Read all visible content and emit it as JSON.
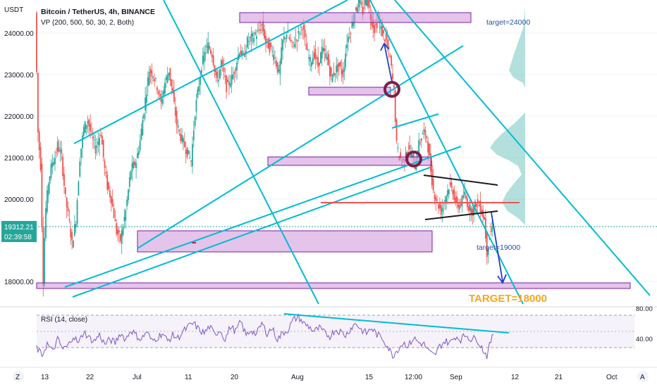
{
  "header": {
    "title": "Bitcoin / TetherUS, 4h, BINANCE",
    "indicator": "VP (200, 500, 50, 30, 2, Both)",
    "currency": "USDT"
  },
  "price_badge": {
    "price": "19312.21",
    "countdown": "02:39:58"
  },
  "annotations": {
    "target_24000": "target=24000",
    "target_19000": "target=19000",
    "target_18000": "TARGET=18000"
  },
  "rsi": {
    "label": "RSI (14, close)",
    "levels": [
      "80.00",
      "40.00"
    ]
  },
  "colors": {
    "trendline": "#00bcd4",
    "zone_fill": "#ce93d8",
    "zone_border": "#7b1fa2",
    "poc_line": "#ef5350",
    "arrow": "#1e40c8",
    "circle": "#7b1f4a",
    "volume_profile": "#26a69a",
    "target_big": "#f5a623",
    "up_candle": "#26a69a",
    "down_candle": "#ef5350",
    "rsi_line": "#7e57c2",
    "price_badge": "#26a69a"
  },
  "chart_data": {
    "type": "candlestick",
    "symbol": "BTCUSDT",
    "timeframe": "4h",
    "y_ticks": [
      "24000.00",
      "23000.00",
      "22000.00",
      "21000.00",
      "20000.00",
      "18000.00"
    ],
    "x_ticks": [
      "13",
      "22",
      "Jul",
      "11",
      "20",
      "Aug",
      "15",
      "12:00",
      "Sep",
      "12",
      "21",
      "Oct"
    ],
    "last_price": 19312.21,
    "targets": [
      24000,
      19000,
      18000
    ],
    "price_path": [
      [
        0,
        24500
      ],
      [
        4,
        21600
      ],
      [
        8,
        20800
      ],
      [
        12,
        18000
      ],
      [
        15,
        19600
      ],
      [
        20,
        20400
      ],
      [
        26,
        20900
      ],
      [
        30,
        21000
      ],
      [
        34,
        21300
      ],
      [
        40,
        21000
      ],
      [
        46,
        20000
      ],
      [
        52,
        19400
      ],
      [
        56,
        18900
      ],
      [
        62,
        19500
      ],
      [
        68,
        21000
      ],
      [
        74,
        21700
      ],
      [
        80,
        21900
      ],
      [
        86,
        21500
      ],
      [
        92,
        21200
      ],
      [
        100,
        21600
      ],
      [
        106,
        20700
      ],
      [
        110,
        20300
      ],
      [
        116,
        20000
      ],
      [
        124,
        19200
      ],
      [
        130,
        19000
      ],
      [
        138,
        19700
      ],
      [
        146,
        20700
      ],
      [
        154,
        20900
      ],
      [
        160,
        21400
      ],
      [
        168,
        22400
      ],
      [
        174,
        23100
      ],
      [
        180,
        23000
      ],
      [
        186,
        22700
      ],
      [
        192,
        22300
      ],
      [
        198,
        22800
      ],
      [
        204,
        23100
      ],
      [
        210,
        22500
      ],
      [
        216,
        21800
      ],
      [
        222,
        21500
      ],
      [
        230,
        21200
      ],
      [
        238,
        20900
      ],
      [
        244,
        22100
      ],
      [
        252,
        23000
      ],
      [
        258,
        23500
      ],
      [
        264,
        23700
      ],
      [
        270,
        23500
      ],
      [
        278,
        22800
      ],
      [
        284,
        23300
      ],
      [
        292,
        22700
      ],
      [
        300,
        22900
      ],
      [
        306,
        23200
      ],
      [
        312,
        23600
      ],
      [
        318,
        23400
      ],
      [
        324,
        23800
      ],
      [
        332,
        23900
      ],
      [
        340,
        24000
      ],
      [
        346,
        24200
      ],
      [
        352,
        23800
      ],
      [
        360,
        23600
      ],
      [
        366,
        23400
      ],
      [
        372,
        23000
      ],
      [
        378,
        23800
      ],
      [
        384,
        24000
      ],
      [
        392,
        23700
      ],
      [
        400,
        23900
      ],
      [
        408,
        24200
      ],
      [
        414,
        23600
      ],
      [
        420,
        23300
      ],
      [
        426,
        23500
      ],
      [
        432,
        23200
      ],
      [
        438,
        23600
      ],
      [
        446,
        23400
      ],
      [
        452,
        22900
      ],
      [
        458,
        23100
      ],
      [
        464,
        23200
      ],
      [
        470,
        23000
      ],
      [
        476,
        23800
      ],
      [
        482,
        24100
      ],
      [
        488,
        24500
      ],
      [
        494,
        24800
      ],
      [
        500,
        24500
      ],
      [
        506,
        24900
      ],
      [
        512,
        24400
      ],
      [
        518,
        24100
      ],
      [
        524,
        24300
      ],
      [
        530,
        24000
      ],
      [
        536,
        23800
      ],
      [
        542,
        23400
      ],
      [
        548,
        22600
      ],
      [
        552,
        21300
      ],
      [
        556,
        21000
      ],
      [
        562,
        20900
      ],
      [
        568,
        21200
      ],
      [
        574,
        21100
      ],
      [
        580,
        20800
      ],
      [
        586,
        21300
      ],
      [
        592,
        21600
      ],
      [
        598,
        21500
      ],
      [
        604,
        20700
      ],
      [
        608,
        20200
      ],
      [
        614,
        19900
      ],
      [
        620,
        19700
      ],
      [
        626,
        20000
      ],
      [
        632,
        20300
      ],
      [
        638,
        20200
      ],
      [
        644,
        19800
      ],
      [
        650,
        19900
      ],
      [
        656,
        20100
      ],
      [
        662,
        19800
      ],
      [
        668,
        19700
      ],
      [
        674,
        19900
      ],
      [
        680,
        19800
      ],
      [
        686,
        19500
      ],
      [
        690,
        18700
      ],
      [
        694,
        19100
      ],
      [
        698,
        19310
      ]
    ],
    "rsi_series": {
      "name": "RSI (14, close)",
      "levels": [
        80,
        40
      ],
      "path": [
        [
          0,
          40
        ],
        [
          8,
          30
        ],
        [
          16,
          45
        ],
        [
          24,
          35
        ],
        [
          32,
          50
        ],
        [
          40,
          38
        ],
        [
          48,
          42
        ],
        [
          56,
          55
        ],
        [
          64,
          45
        ],
        [
          72,
          60
        ],
        [
          80,
          52
        ],
        [
          88,
          48
        ],
        [
          96,
          56
        ],
        [
          104,
          44
        ],
        [
          112,
          50
        ],
        [
          120,
          46
        ],
        [
          128,
          58
        ],
        [
          136,
          50
        ],
        [
          144,
          62
        ],
        [
          152,
          55
        ],
        [
          160,
          50
        ],
        [
          168,
          60
        ],
        [
          176,
          48
        ],
        [
          184,
          52
        ],
        [
          192,
          58
        ],
        [
          200,
          48
        ],
        [
          208,
          55
        ],
        [
          216,
          52
        ],
        [
          224,
          60
        ],
        [
          232,
          66
        ],
        [
          240,
          70
        ],
        [
          248,
          62
        ],
        [
          256,
          58
        ],
        [
          264,
          66
        ],
        [
          272,
          56
        ],
        [
          280,
          62
        ],
        [
          288,
          50
        ],
        [
          296,
          66
        ],
        [
          304,
          60
        ],
        [
          312,
          72
        ],
        [
          320,
          55
        ],
        [
          328,
          62
        ],
        [
          336,
          56
        ],
        [
          344,
          70
        ],
        [
          352,
          58
        ],
        [
          360,
          64
        ],
        [
          368,
          50
        ],
        [
          376,
          58
        ],
        [
          384,
          62
        ],
        [
          392,
          74
        ],
        [
          400,
          78
        ],
        [
          408,
          70
        ],
        [
          416,
          66
        ],
        [
          424,
          60
        ],
        [
          432,
          64
        ],
        [
          440,
          58
        ],
        [
          448,
          54
        ],
        [
          456,
          62
        ],
        [
          464,
          60
        ],
        [
          472,
          55
        ],
        [
          480,
          64
        ],
        [
          488,
          70
        ],
        [
          496,
          62
        ],
        [
          504,
          58
        ],
        [
          512,
          64
        ],
        [
          520,
          56
        ],
        [
          528,
          52
        ],
        [
          536,
          42
        ],
        [
          544,
          30
        ],
        [
          552,
          38
        ],
        [
          560,
          46
        ],
        [
          568,
          42
        ],
        [
          576,
          52
        ],
        [
          584,
          46
        ],
        [
          592,
          44
        ],
        [
          600,
          34
        ],
        [
          608,
          30
        ],
        [
          616,
          42
        ],
        [
          624,
          48
        ],
        [
          632,
          46
        ],
        [
          640,
          54
        ],
        [
          648,
          50
        ],
        [
          656,
          56
        ],
        [
          664,
          50
        ],
        [
          672,
          52
        ],
        [
          680,
          40
        ],
        [
          688,
          30
        ],
        [
          694,
          48
        ],
        [
          698,
          56
        ]
      ]
    }
  }
}
